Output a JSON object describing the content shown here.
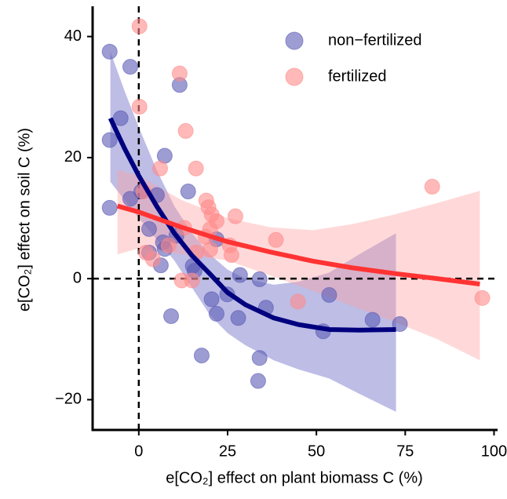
{
  "chart_data": {
    "type": "scatter",
    "xlabel": "e[CO₂] effect on plant biomass C (%)",
    "ylabel": "e[CO₂] effect on soil C (%)",
    "xlim": [
      -13,
      101
    ],
    "ylim": [
      -25,
      45
    ],
    "xticks": [
      0,
      25,
      50,
      75,
      100
    ],
    "yticks": [
      {
        "value": -20,
        "label": "−20"
      },
      0,
      20,
      40
    ],
    "legend": "upper right",
    "reference_lines": {
      "x": 0,
      "y": 0
    },
    "series": [
      {
        "name": "non−fertilized",
        "color": "#5b5bb5",
        "x": [
          -8.2,
          -2.4,
          11.5,
          -5.1,
          -8.2,
          7.3,
          -8.2,
          -2.4,
          0.7,
          13.9,
          5.1,
          2.9,
          6.8,
          7.3,
          10.6,
          2.9,
          6.2,
          15.2,
          15.7,
          21.9,
          9.1,
          17.7,
          20.5,
          21.9,
          24.9,
          28.5,
          28,
          34,
          35.8,
          34,
          33.6,
          53.6,
          51.9,
          65.8,
          73.5
        ],
        "y": [
          37.5,
          35,
          32,
          26.5,
          22.9,
          20.3,
          11.7,
          13.2,
          14.4,
          14.4,
          13.8,
          8.2,
          6,
          4.9,
          7.1,
          4.3,
          2.2,
          2.1,
          1.3,
          6.5,
          -6.2,
          -12.7,
          -3.4,
          -5.8,
          -2.6,
          0.6,
          -6.5,
          -0.1,
          -4.8,
          -13.1,
          -16.9,
          -2.7,
          -8.7,
          -6.8,
          -7.5
        ]
      },
      {
        "name": "fertilized",
        "color": "#ff8a8a",
        "x": [
          0.2,
          0.2,
          11.5,
          13.2,
          16.1,
          6,
          1.3,
          19,
          20.5,
          19.6,
          21.9,
          20.1,
          18.8,
          27.2,
          12.8,
          8.4,
          16.1,
          4,
          2,
          12.1,
          15,
          25.6,
          26.1,
          20.1,
          38.6,
          44.8,
          82.6,
          96.7
        ],
        "y": [
          41.7,
          28.4,
          33.9,
          24.4,
          18.2,
          18.2,
          14.4,
          12.9,
          10.6,
          11.8,
          9.5,
          8.2,
          6.9,
          10.3,
          8.4,
          5.5,
          4.3,
          3.2,
          4.3,
          -0.3,
          -0.3,
          5.5,
          3.9,
          4.8,
          6.4,
          -3.8,
          15.2,
          -3.2
        ]
      }
    ],
    "fits": [
      {
        "color": "#00007f",
        "band_color": "#5b5bc0",
        "x": [
          -8,
          -4,
          0,
          5,
          10,
          15,
          20,
          25,
          30,
          38,
          45,
          53.6,
          62,
          72.4
        ],
        "y": [
          26.5,
          21.5,
          17,
          12,
          7.5,
          3.8,
          0.8,
          -2.3,
          -4.3,
          -6.5,
          -7.6,
          -8.4,
          -8.5,
          -8.4
        ],
        "upper": [
          37.5,
          31,
          25,
          18,
          12,
          7.5,
          4,
          1.5,
          0,
          -1,
          -0.5,
          1,
          4,
          7.5
        ],
        "lower": [
          16,
          13,
          10,
          6.5,
          3,
          -1.5,
          -6,
          -9,
          -11,
          -13.5,
          -15,
          -16.5,
          -19,
          -22
        ]
      },
      {
        "color": "#ff3333",
        "band_color": "#ffa0a0",
        "x": [
          -6,
          0,
          12,
          25,
          37,
          49,
          60,
          71.3,
          84,
          96
        ],
        "y": [
          12,
          11,
          8.5,
          6.1,
          4.4,
          2.9,
          1.8,
          0.9,
          0,
          -0.9
        ],
        "upper": [
          18,
          17,
          13,
          10,
          8.5,
          8,
          9,
          10.5,
          12.5,
          14.5
        ],
        "lower": [
          4,
          5,
          4,
          3,
          0.5,
          -2,
          -4.5,
          -7,
          -10,
          -13.5
        ]
      }
    ]
  }
}
